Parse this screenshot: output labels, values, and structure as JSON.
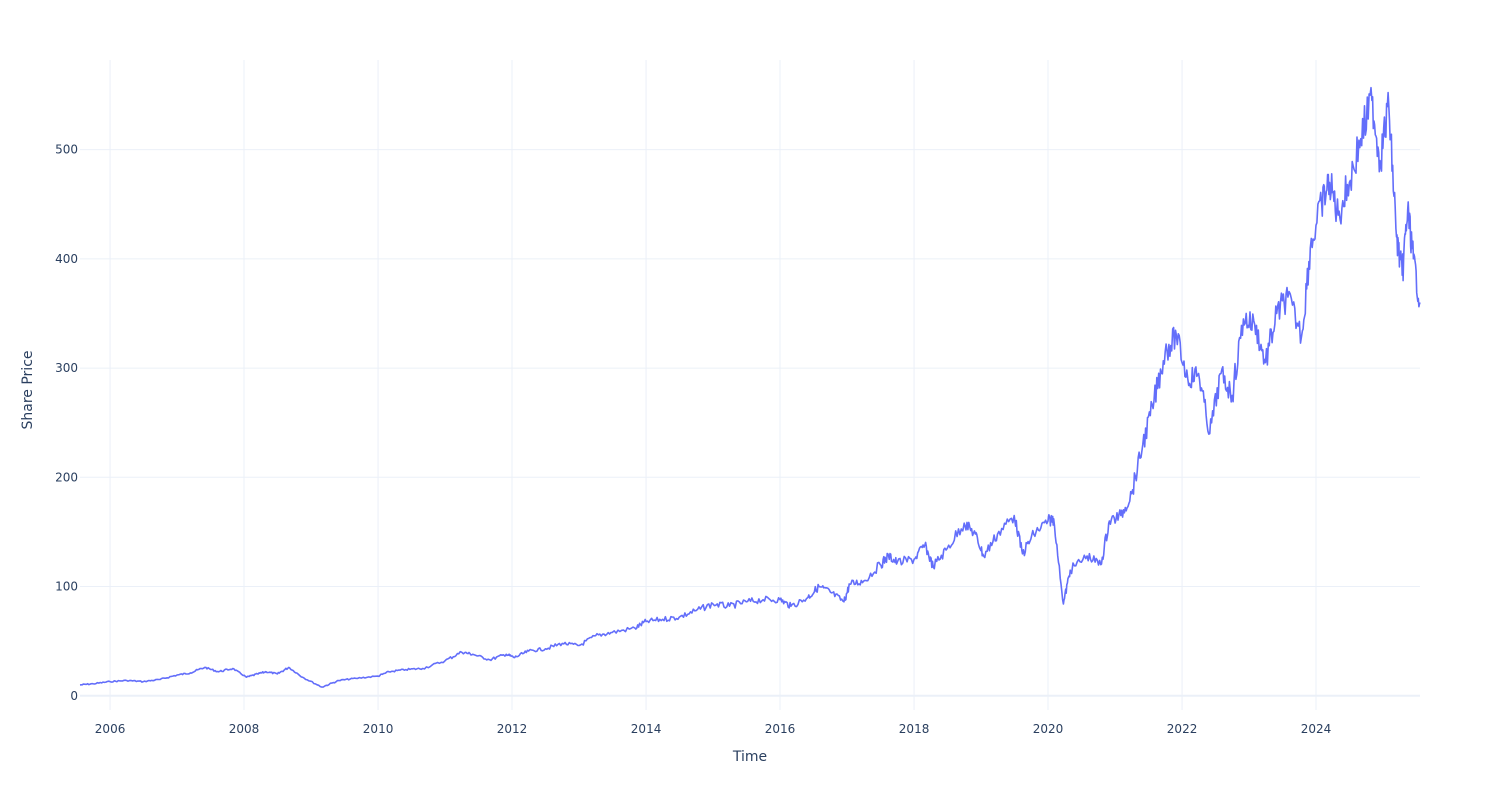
{
  "chart_data": {
    "type": "line",
    "title": "",
    "xlabel": "Time",
    "ylabel": "Share Price",
    "x_tick_labels": [
      "2006",
      "2008",
      "2010",
      "2012",
      "2014",
      "2016",
      "2018",
      "2020",
      "2022",
      "2024"
    ],
    "y_tick_labels": [
      "0",
      "100",
      "200",
      "300",
      "400",
      "500"
    ],
    "xlim": [
      "2005-07-21",
      "2025-07-21"
    ],
    "ylim": [
      -13,
      582
    ],
    "grid": true,
    "legend": "none",
    "series": [
      {
        "color": "#636efa",
        "points": [
          [
            "2005-07-21",
            10
          ],
          [
            "2005-10-01",
            11
          ],
          [
            "2006-01-01",
            13
          ],
          [
            "2006-04-01",
            14
          ],
          [
            "2006-07-01",
            13
          ],
          [
            "2006-10-01",
            15
          ],
          [
            "2007-01-01",
            19
          ],
          [
            "2007-03-15",
            21
          ],
          [
            "2007-06-01",
            26
          ],
          [
            "2007-08-15",
            22
          ],
          [
            "2007-11-01",
            25
          ],
          [
            "2008-01-15",
            17
          ],
          [
            "2008-03-15",
            20
          ],
          [
            "2008-05-01",
            22
          ],
          [
            "2008-07-01",
            20
          ],
          [
            "2008-09-01",
            26
          ],
          [
            "2008-11-15",
            17
          ],
          [
            "2009-03-01",
            8
          ],
          [
            "2009-06-01",
            14
          ],
          [
            "2009-09-01",
            16
          ],
          [
            "2010-01-01",
            18
          ],
          [
            "2010-03-01",
            22
          ],
          [
            "2010-06-01",
            24
          ],
          [
            "2010-09-01",
            25
          ],
          [
            "2011-01-01",
            32
          ],
          [
            "2011-04-01",
            40
          ],
          [
            "2011-06-01",
            38
          ],
          [
            "2011-09-01",
            33
          ],
          [
            "2011-12-01",
            38
          ],
          [
            "2012-01-15",
            35
          ],
          [
            "2012-04-01",
            41
          ],
          [
            "2012-07-01",
            43
          ],
          [
            "2012-10-01",
            48
          ],
          [
            "2013-01-01",
            46
          ],
          [
            "2013-04-01",
            55
          ],
          [
            "2013-07-01",
            58
          ],
          [
            "2013-11-01",
            62
          ],
          [
            "2014-01-01",
            68
          ],
          [
            "2014-04-01",
            70
          ],
          [
            "2014-07-01",
            72
          ],
          [
            "2014-10-01",
            78
          ],
          [
            "2015-01-01",
            84
          ],
          [
            "2015-04-01",
            82
          ],
          [
            "2015-07-01",
            86
          ],
          [
            "2015-10-01",
            88
          ],
          [
            "2016-01-01",
            88
          ],
          [
            "2016-03-01",
            82
          ],
          [
            "2016-06-01",
            90
          ],
          [
            "2016-08-01",
            100
          ],
          [
            "2016-10-01",
            95
          ],
          [
            "2016-12-15",
            86
          ],
          [
            "2017-01-15",
            102
          ],
          [
            "2017-04-01",
            105
          ],
          [
            "2017-07-01",
            120
          ],
          [
            "2017-08-15",
            128
          ],
          [
            "2017-10-01",
            122
          ],
          [
            "2018-01-01",
            125
          ],
          [
            "2018-03-01",
            138
          ],
          [
            "2018-04-15",
            118
          ],
          [
            "2018-07-01",
            135
          ],
          [
            "2018-10-01",
            158
          ],
          [
            "2018-12-01",
            148
          ],
          [
            "2019-01-15",
            128
          ],
          [
            "2019-04-01",
            148
          ],
          [
            "2019-07-01",
            165
          ],
          [
            "2019-08-15",
            130
          ],
          [
            "2019-10-15",
            148
          ],
          [
            "2020-01-01",
            160
          ],
          [
            "2020-02-01",
            162
          ],
          [
            "2020-03-25",
            84
          ],
          [
            "2020-05-01",
            115
          ],
          [
            "2020-08-01",
            128
          ],
          [
            "2020-10-15",
            120
          ],
          [
            "2020-12-01",
            160
          ],
          [
            "2021-02-01",
            165
          ],
          [
            "2021-04-01",
            185
          ],
          [
            "2021-06-01",
            230
          ],
          [
            "2021-08-01",
            270
          ],
          [
            "2021-10-01",
            315
          ],
          [
            "2021-12-01",
            330
          ],
          [
            "2022-02-01",
            290
          ],
          [
            "2022-04-01",
            295
          ],
          [
            "2022-06-01",
            240
          ],
          [
            "2022-08-01",
            295
          ],
          [
            "2022-10-01",
            275
          ],
          [
            "2022-12-01",
            345
          ],
          [
            "2023-02-01",
            340
          ],
          [
            "2023-04-01",
            305
          ],
          [
            "2023-06-01",
            350
          ],
          [
            "2023-08-01",
            365
          ],
          [
            "2023-10-15",
            330
          ],
          [
            "2023-12-01",
            410
          ],
          [
            "2024-02-01",
            450
          ],
          [
            "2024-03-15",
            470
          ],
          [
            "2024-05-01",
            440
          ],
          [
            "2024-07-01",
            470
          ],
          [
            "2024-09-01",
            510
          ],
          [
            "2024-11-01",
            545
          ],
          [
            "2024-12-15",
            490
          ],
          [
            "2025-02-01",
            540
          ],
          [
            "2025-03-15",
            420
          ],
          [
            "2025-04-15",
            385
          ],
          [
            "2025-05-15",
            445
          ],
          [
            "2025-06-15",
            400
          ],
          [
            "2025-07-21",
            360
          ]
        ]
      }
    ]
  }
}
